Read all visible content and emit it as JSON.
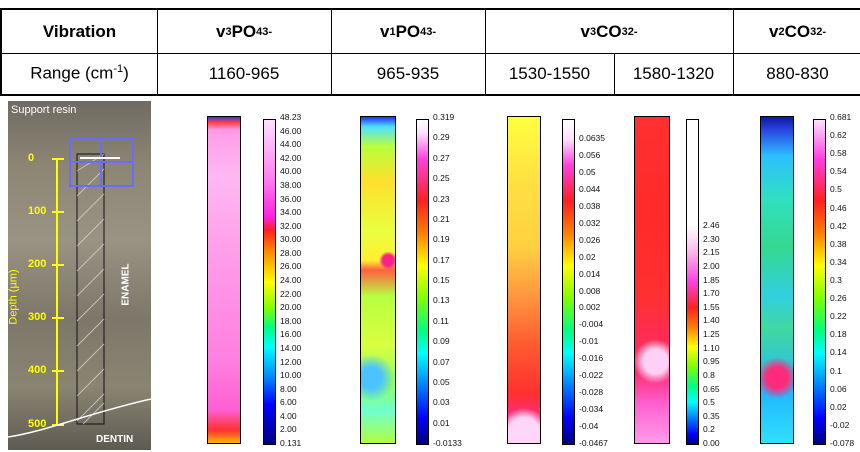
{
  "table": {
    "row1_label": "Vibration",
    "row2_label": "Range (cm-1)",
    "cols": [
      {
        "vib_base": "v",
        "vib_sub": "3",
        "vib_ion": " PO",
        "ion_sub": "4",
        "ion_sup": "3-",
        "range": "1160-965"
      },
      {
        "vib_base": "v",
        "vib_sub": "1",
        "vib_ion": " PO",
        "ion_sub": "4",
        "ion_sup": "3-",
        "range": "965-935"
      },
      {
        "vib_base": "v",
        "vib_sub": "3",
        "vib_ion": " CO",
        "ion_sub": "3",
        "ion_sup": "2-",
        "range_a": "1530-1550",
        "range_b": "1580-1320"
      },
      {
        "vib_base": "v",
        "vib_sub": "2",
        "vib_ion": " CO",
        "ion_sub": "3",
        "ion_sup": "2-",
        "range": "880-830"
      }
    ]
  },
  "photo": {
    "support_label": "Support resin",
    "enamel_label": "ENAMEL",
    "dentin_label": "DENTIN",
    "axis_label": "Depth (µm)",
    "axis_ticks": [
      "0",
      "100",
      "200",
      "300",
      "400",
      "500"
    ]
  },
  "colorbars": [
    {
      "ticks": [
        "48.23",
        "46.00",
        "44.00",
        "42.00",
        "40.00",
        "38.00",
        "36.00",
        "34.00",
        "32.00",
        "30.00",
        "28.00",
        "26.00",
        "24.00",
        "22.00",
        "20.00",
        "18.00",
        "16.00",
        "14.00",
        "12.00",
        "10.00",
        "8.00",
        "6.00",
        "4.00",
        "2.00",
        "0.131"
      ]
    },
    {
      "ticks": [
        "0.319",
        "0.29",
        "0.27",
        "0.25",
        "0.23",
        "0.21",
        "0.19",
        "0.17",
        "0.15",
        "0.13",
        "0.11",
        "0.09",
        "0.07",
        "0.05",
        "0.03",
        "0.01",
        "-0.0133"
      ]
    },
    {
      "ticks": [
        "0.0635",
        "0.056",
        "0.05",
        "0.044",
        "0.038",
        "0.032",
        "0.026",
        "0.02",
        "0.014",
        "0.008",
        "0.002",
        "-0.004",
        "-0.01",
        "-0.016",
        "-0.022",
        "-0.028",
        "-0.034",
        "-0.04",
        "-0.0467"
      ]
    },
    {
      "ticks": [
        "2.46",
        "2.30",
        "2.15",
        "2.00",
        "1.85",
        "1.70",
        "1.55",
        "1.40",
        "1.25",
        "1.10",
        "0.95",
        "0.8",
        "0.65",
        "0.5",
        "0.35",
        "0.2",
        "0.00"
      ]
    },
    {
      "ticks": [
        "0.681",
        "0.62",
        "0.58",
        "0.54",
        "0.5",
        "0.46",
        "0.42",
        "0.38",
        "0.34",
        "0.3",
        "0.26",
        "0.22",
        "0.18",
        "0.14",
        "0.1",
        "0.06",
        "0.02",
        "-0.02",
        "-0.078"
      ]
    }
  ],
  "colors": {
    "axis": "#ffff00",
    "frame": "#6b6bff"
  }
}
